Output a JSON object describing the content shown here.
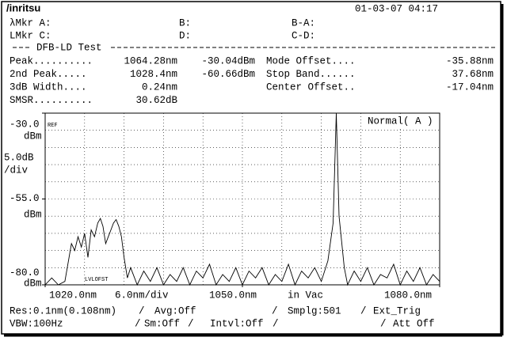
{
  "header": {
    "brand": "/inritsu",
    "datetime": "01-03-07 04:17"
  },
  "markers": [
    [
      "λMkr  A:",
      "B:",
      "B-A:"
    ],
    [
      "LMkr  C:",
      "D:",
      "C-D:"
    ]
  ],
  "test_title": "DFB-LD Test",
  "results": [
    [
      "Peak..........",
      "1064.28nm",
      "-30.04dBm",
      "Mode Offset....",
      "-35.88nm"
    ],
    [
      "2nd  Peak.....",
      "1028.4nm",
      "-60.66dBm",
      "Stop Band......",
      "37.68nm"
    ],
    [
      " 3dB Width....",
      "0.24nm",
      "",
      "Center Offset..",
      "-17.04nm"
    ],
    [
      "SMSR..........",
      "30.62dB",
      "",
      "",
      ""
    ]
  ],
  "plot": {
    "ref_label": "REF",
    "mode_label": "Normal( A )",
    "offset_label": "LVLOFST",
    "y_unit": "dBm",
    "y_scale": "5.0dB",
    "y_scale_unit": "/div",
    "x_scale": "6.0nm/div",
    "x_medium": "in Vac",
    "xlim": [
      1020,
      1080
    ],
    "ylim": [
      -80,
      -30
    ],
    "yticks": [
      {
        "value": -30,
        "label": "-30.0"
      },
      {
        "value": -55,
        "label": "-55.0"
      },
      {
        "value": -80,
        "label": "-80.0"
      }
    ],
    "xticks": [
      {
        "value": 1020,
        "label": "1020.0nm"
      },
      {
        "value": 1050,
        "label": "1050.0nm"
      },
      {
        "value": 1080,
        "label": "1080.0nm"
      }
    ],
    "trace": {
      "x": [
        1020,
        1021,
        1022,
        1023,
        1024,
        1024.5,
        1025,
        1025.5,
        1026,
        1026.5,
        1027,
        1027.5,
        1028,
        1028.4,
        1028.8,
        1029.2,
        1029.6,
        1030,
        1030.4,
        1030.8,
        1031.2,
        1031.6,
        1032,
        1032.5,
        1033,
        1034,
        1035,
        1036,
        1037,
        1038,
        1039,
        1040,
        1041,
        1042,
        1043,
        1044,
        1045,
        1046,
        1047,
        1048,
        1049,
        1050,
        1051,
        1052,
        1053,
        1054,
        1055,
        1056,
        1057,
        1058,
        1059,
        1060,
        1061,
        1062,
        1063,
        1063.8,
        1064.28,
        1064.7,
        1065.5,
        1066,
        1067,
        1068,
        1069,
        1070,
        1071,
        1072,
        1073,
        1074,
        1075,
        1076,
        1077,
        1078,
        1079,
        1080
      ],
      "y": [
        -80,
        -78,
        -80,
        -79,
        -68,
        -70,
        -66,
        -69,
        -65,
        -72,
        -64,
        -66,
        -62,
        -60.66,
        -63,
        -68,
        -66,
        -64,
        -62,
        -61,
        -63,
        -66,
        -72,
        -78,
        -75,
        -80,
        -76,
        -79,
        -75,
        -80,
        -77,
        -79,
        -75,
        -80,
        -76,
        -78,
        -74,
        -80,
        -77,
        -79,
        -75,
        -80,
        -76,
        -78,
        -75,
        -80,
        -77,
        -79,
        -74,
        -80,
        -76,
        -78,
        -75,
        -79,
        -73,
        -62,
        -30.04,
        -60,
        -75,
        -80,
        -76,
        -79,
        -75,
        -80,
        -77,
        -78,
        -74,
        -80,
        -76,
        -79,
        -75,
        -80,
        -77,
        -79
      ]
    }
  },
  "footer": [
    [
      "Res:0.1nm(0.108nm)",
      "/",
      "Avg:Off",
      "/",
      "Smplg:501",
      "/",
      "Ext_Trig"
    ],
    [
      "VBW:100Hz",
      "/",
      "Sm:Off",
      "/",
      "Intvl:Off",
      "/",
      "/",
      "Att Off"
    ]
  ]
}
